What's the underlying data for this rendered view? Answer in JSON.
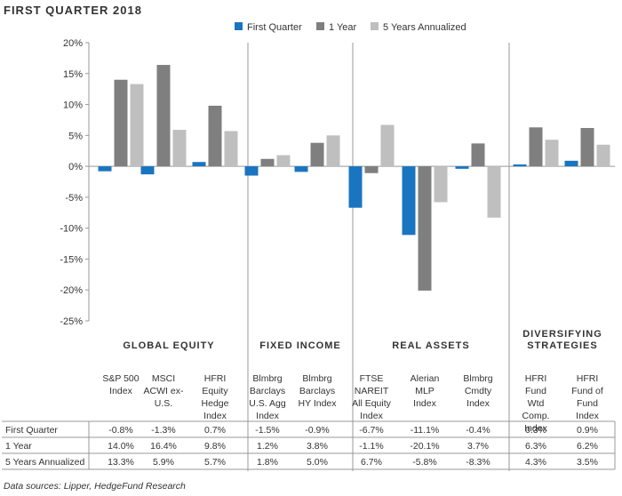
{
  "title": "FIRST QUARTER 2018",
  "source": "Data sources: Lipper, HedgeFund Research",
  "colors": {
    "First Quarter": "#1a75c0",
    "1 Year": "#7f7f7f",
    "5 Years Annualized": "#bfbfbf"
  },
  "chart_data": {
    "type": "bar",
    "title": "FIRST QUARTER 2018",
    "ylim": [
      -25,
      20
    ],
    "yticks": [
      20,
      15,
      10,
      5,
      0,
      -5,
      -10,
      -15,
      -20,
      -25
    ],
    "ytick_labels": [
      "20%",
      "15%",
      "10%",
      "5%",
      "0%",
      "-5%",
      "-10%",
      "-15%",
      "-20%",
      "-25%"
    ],
    "grid": false,
    "legend_position": "top",
    "groups": [
      {
        "label": [
          "GLOBAL EQUITY"
        ],
        "categories": [
          0,
          1,
          2
        ]
      },
      {
        "label": [
          "FIXED INCOME"
        ],
        "categories": [
          3,
          4
        ]
      },
      {
        "label": [
          "REAL ASSETS"
        ],
        "categories": [
          5,
          6,
          7
        ]
      },
      {
        "label": [
          "DIVERSIFYING",
          "STRATEGIES"
        ],
        "categories": [
          8,
          9
        ]
      }
    ],
    "categories": [
      [
        "S&P 500",
        "Index"
      ],
      [
        "MSCI",
        "ACWI ex-",
        "U.S."
      ],
      [
        "HFRI",
        "Equity",
        "Hedge",
        "Index"
      ],
      [
        "Blmbrg",
        "Barclays",
        "U.S. Agg",
        "Index"
      ],
      [
        "Blmbrg",
        "Barclays",
        "HY Index"
      ],
      [
        "FTSE",
        "NAREIT",
        "All Equity",
        "Index"
      ],
      [
        "Alerian",
        "MLP",
        "Index"
      ],
      [
        "Blmbrg",
        "Cmdty",
        "Index"
      ],
      [
        "HFRI",
        "Fund",
        "Wtd",
        "Comp.",
        "Index"
      ],
      [
        "HFRI",
        "Fund of",
        "Fund",
        "Index"
      ]
    ],
    "series": [
      {
        "name": "First Quarter",
        "values": [
          -0.8,
          -1.3,
          0.7,
          -1.5,
          -0.9,
          -6.7,
          -11.1,
          -0.4,
          0.3,
          0.9
        ],
        "labels": [
          "-0.8%",
          "-1.3%",
          "0.7%",
          "-1.5%",
          "-0.9%",
          "-6.7%",
          "-11.1%",
          "-0.4%",
          "0.3%",
          "0.9%"
        ]
      },
      {
        "name": "1 Year",
        "values": [
          14.0,
          16.4,
          9.8,
          1.2,
          3.8,
          -1.1,
          -20.1,
          3.7,
          6.3,
          6.2
        ],
        "labels": [
          "14.0%",
          "16.4%",
          "9.8%",
          "1.2%",
          "3.8%",
          "-1.1%",
          "-20.1%",
          "3.7%",
          "6.3%",
          "6.2%"
        ]
      },
      {
        "name": "5 Years Annualized",
        "values": [
          13.3,
          5.9,
          5.7,
          1.8,
          5.0,
          6.7,
          -5.8,
          -8.3,
          4.3,
          3.5
        ],
        "labels": [
          "13.3%",
          "5.9%",
          "5.7%",
          "1.8%",
          "5.0%",
          "6.7%",
          "-5.8%",
          "-8.3%",
          "4.3%",
          "3.5%"
        ]
      }
    ]
  }
}
